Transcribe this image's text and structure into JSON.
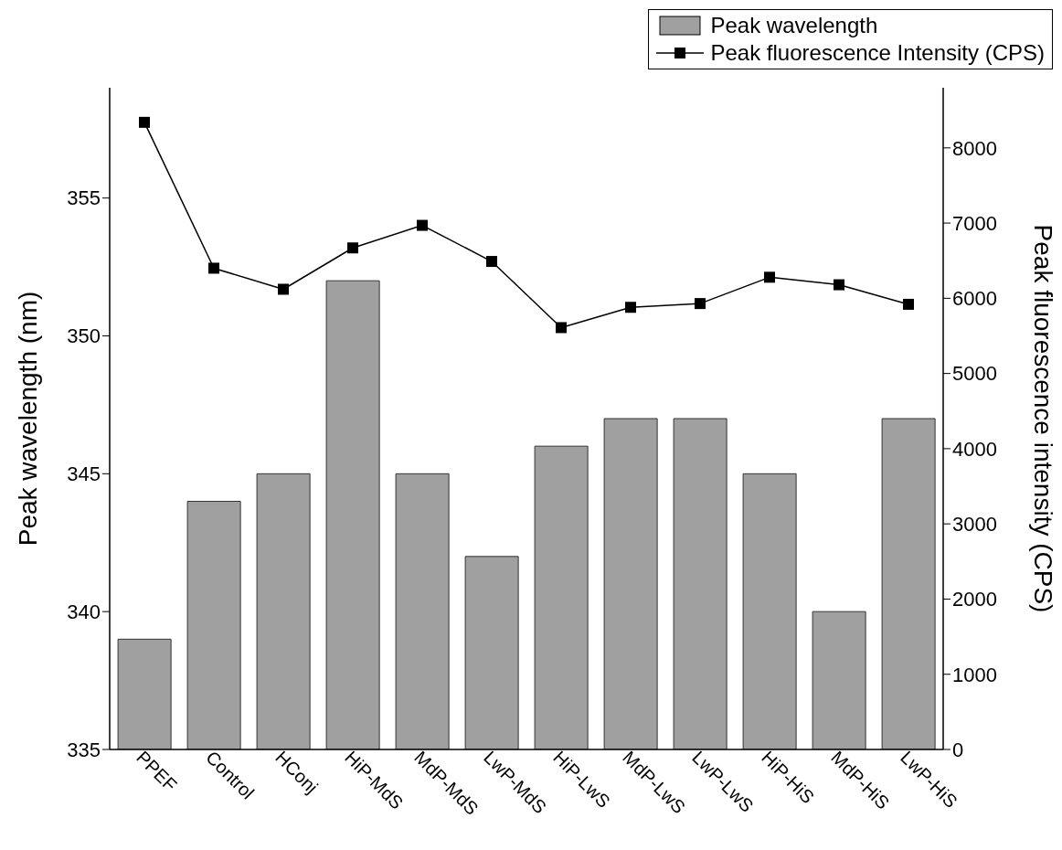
{
  "chart_data": {
    "type": "bar",
    "categories": [
      "PPEF",
      "Control",
      "HConj",
      "HiP-MdS",
      "MdP-MdS",
      "LwP-MdS",
      "HiP-LwS",
      "MdP-LwS",
      "LwP-LwS",
      "HiP-HiS",
      "MdP-HiS",
      "LwP-HiS"
    ],
    "series": [
      {
        "name": "Peak wavelength",
        "color": "#a0a0a0",
        "values": [
          339,
          344,
          345,
          352,
          345,
          342,
          346,
          347,
          347,
          345,
          340,
          347
        ]
      },
      {
        "name": "Peak fluorescence Intensity (CPS)",
        "type": "line",
        "axis": "y2",
        "color": "#000000",
        "marker": "square",
        "line_style": "solid",
        "values": [
          8340,
          6400,
          6120,
          6670,
          6970,
          6490,
          5610,
          5880,
          5930,
          6280,
          6180,
          5920
        ]
      }
    ],
    "ylabel": "Peak wavelength (nm)",
    "y2label": "Peak fluorescence intensity (CPS)",
    "ylim": [
      335,
      359
    ],
    "yticks": [
      335,
      340,
      345,
      350,
      355
    ],
    "y2lim": [
      0,
      8800
    ],
    "y2ticks": [
      0,
      1000,
      2000,
      3000,
      4000,
      5000,
      6000,
      7000,
      8000
    ],
    "legend": "top right",
    "grid": false
  }
}
